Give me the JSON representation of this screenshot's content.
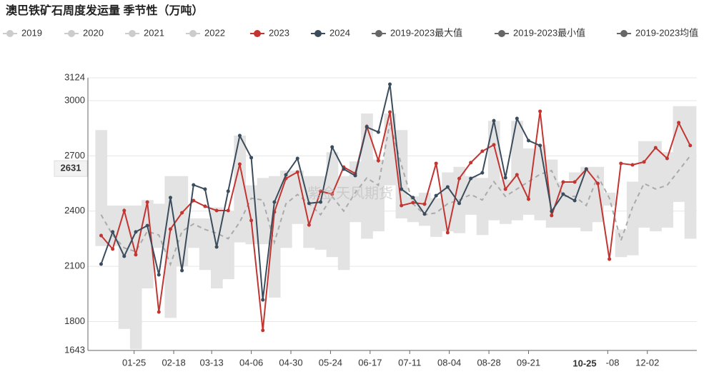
{
  "chart_data": {
    "type": "line",
    "title": "澳巴铁矿石周度发运量 季节性（万吨）",
    "watermark": "紫金天风期货",
    "xlim": [
      -3,
      366
    ],
    "xticks": [
      {
        "value": 25,
        "label": "01-25"
      },
      {
        "value": 49,
        "label": "02-18"
      },
      {
        "value": 72,
        "label": "03-13"
      },
      {
        "value": 96,
        "label": "04-06"
      },
      {
        "value": 120,
        "label": "04-30"
      },
      {
        "value": 144,
        "label": "05-24"
      },
      {
        "value": 168,
        "label": "06-17"
      },
      {
        "value": 192,
        "label": "07-11"
      },
      {
        "value": 216,
        "label": "08-04"
      },
      {
        "value": 240,
        "label": "08-28"
      },
      {
        "value": 264,
        "label": "09-21"
      },
      {
        "value": 312,
        "label": "11-08"
      },
      {
        "value": 336,
        "label": "12-02"
      }
    ],
    "ylim": [
      1643,
      3124
    ],
    "yticks": [
      1643,
      1800,
      2100,
      2400,
      2700,
      3000,
      3124
    ],
    "grid": true,
    "axis_pointer": {
      "x": 298,
      "x_label": "10-25",
      "y": 2631
    },
    "x": [
      5,
      12,
      19,
      26,
      33,
      40,
      47,
      54,
      61,
      68,
      75,
      82,
      89,
      96,
      103,
      110,
      117,
      124,
      131,
      138,
      145,
      152,
      159,
      166,
      173,
      180,
      187,
      194,
      201,
      208,
      215,
      222,
      229,
      236,
      243,
      250,
      257,
      264,
      271,
      278,
      285,
      292,
      299,
      306,
      313,
      320,
      327,
      334,
      341,
      348,
      355,
      362
    ],
    "series": [
      {
        "name": "2019",
        "color": "#cccccc",
        "visible": false
      },
      {
        "name": "2020",
        "color": "#cccccc",
        "visible": false
      },
      {
        "name": "2021",
        "color": "#cccccc",
        "visible": false
      },
      {
        "name": "2022",
        "color": "#cccccc",
        "visible": false
      },
      {
        "name": "2023",
        "color": "#c23531",
        "role": "line",
        "values": [
          2267,
          2194,
          2403,
          2163,
          2449,
          1852,
          2302,
          2391,
          2457,
          2426,
          2403,
          2403,
          2655,
          2349,
          1752,
          2395,
          2577,
          2612,
          2325,
          2508,
          2492,
          2639,
          2604,
          2860,
          2674,
          2938,
          2430,
          2446,
          2438,
          2659,
          2283,
          2577,
          2663,
          2725,
          2760,
          2519,
          2597,
          2465,
          2942,
          2376,
          2558,
          2558,
          2628,
          2550,
          2139,
          2659,
          2651,
          2667,
          2744,
          2686,
          2880,
          2756
        ]
      },
      {
        "name": "2024",
        "color": "#3b4c5c",
        "role": "line",
        "values": [
          2112,
          2287,
          2155,
          2287,
          2321,
          2054,
          2473,
          2077,
          2542,
          2519,
          2205,
          2508,
          2810,
          2690,
          1918,
          2449,
          2597,
          2686,
          2442,
          2449,
          2748,
          2628,
          2593,
          2856,
          2829,
          3089,
          2519,
          2473,
          2384,
          2484,
          2531,
          2442,
          2577,
          2608,
          2891,
          2581,
          2903,
          2783,
          2756,
          2399,
          2492,
          2457,
          2628,
          null,
          null,
          null,
          null,
          null,
          null,
          null,
          null,
          null
        ]
      },
      {
        "name": "2019-2023最大值",
        "color": "#e3e3e3",
        "role": "max",
        "values": [
          2840,
          2430,
          2430,
          2430,
          2460,
          2440,
          2590,
          2590,
          2360,
          2360,
          2420,
          2400,
          2810,
          2540,
          2580,
          2590,
          2620,
          2620,
          2590,
          2590,
          2720,
          2590,
          2670,
          2930,
          2680,
          2930,
          2840,
          2480,
          2500,
          2470,
          2610,
          2640,
          2590,
          2580,
          2890,
          2570,
          2890,
          2740,
          2760,
          2680,
          2560,
          2610,
          2640,
          2640,
          2500,
          2300,
          2560,
          2780,
          2780,
          2720,
          2970,
          2970
        ]
      },
      {
        "name": "2019-2023最小值",
        "color": "#e3e3e3",
        "role": "min",
        "values": [
          2210,
          2210,
          1760,
          1650,
          1980,
          2200,
          1820,
          2100,
          2200,
          2080,
          1980,
          2030,
          2230,
          2220,
          2220,
          1930,
          2200,
          2330,
          2200,
          2190,
          2150,
          2080,
          2340,
          2250,
          2290,
          2540,
          2360,
          2340,
          2320,
          2260,
          2290,
          2280,
          2380,
          2270,
          2350,
          2330,
          2350,
          2380,
          2350,
          2310,
          2310,
          2310,
          2290,
          2340,
          2430,
          2150,
          2160,
          2310,
          2290,
          2310,
          2450,
          2250
        ]
      },
      {
        "name": "2019-2023均值",
        "color": "#aaaaaa",
        "role": "mean",
        "values": [
          2380,
          2270,
          2200,
          2180,
          2290,
          2270,
          2110,
          2290,
          2330,
          2300,
          2280,
          2250,
          2340,
          2470,
          2460,
          2230,
          2440,
          2490,
          2440,
          2380,
          2480,
          2400,
          2500,
          2580,
          2540,
          2880,
          2650,
          2440,
          2380,
          2390,
          2440,
          2460,
          2490,
          2460,
          2560,
          2480,
          2520,
          2560,
          2600,
          2620,
          2480,
          2480,
          2430,
          2590,
          2470,
          2240,
          2420,
          2550,
          2520,
          2540,
          2620,
          2700
        ]
      }
    ]
  }
}
